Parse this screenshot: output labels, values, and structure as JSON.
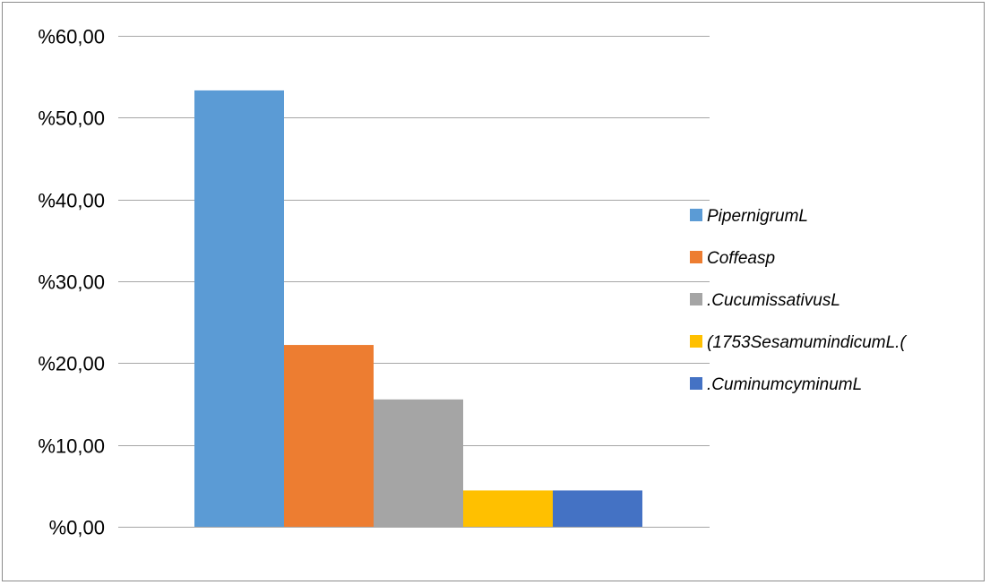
{
  "chart_data": {
    "type": "bar",
    "title": "",
    "xlabel": "",
    "ylabel": "",
    "categories": [
      ""
    ],
    "series": [
      {
        "name": "PipernigrumL",
        "values": [
          53.33
        ],
        "color": "#5b9bd5"
      },
      {
        "name": "Coffeasp",
        "values": [
          22.22
        ],
        "color": "#ed7d31"
      },
      {
        "name": ".CucumissativusL",
        "values": [
          15.56
        ],
        "color": "#a5a5a5"
      },
      {
        "name": "(1753SesamumindicumL.(",
        "values": [
          4.44
        ],
        "color": "#ffc000"
      },
      {
        "name": ".CuminumcyminumL",
        "values": [
          4.44
        ],
        "color": "#4472c4"
      }
    ],
    "ylim": [
      0,
      60
    ],
    "yticks": [
      0,
      10,
      20,
      30,
      40,
      50,
      60
    ],
    "ytick_labels": [
      "%0,00",
      "%10,00",
      "%20,00",
      "%30,00",
      "%40,00",
      "%50,00",
      "%60,00"
    ],
    "grid": true,
    "legend_position": "right"
  }
}
